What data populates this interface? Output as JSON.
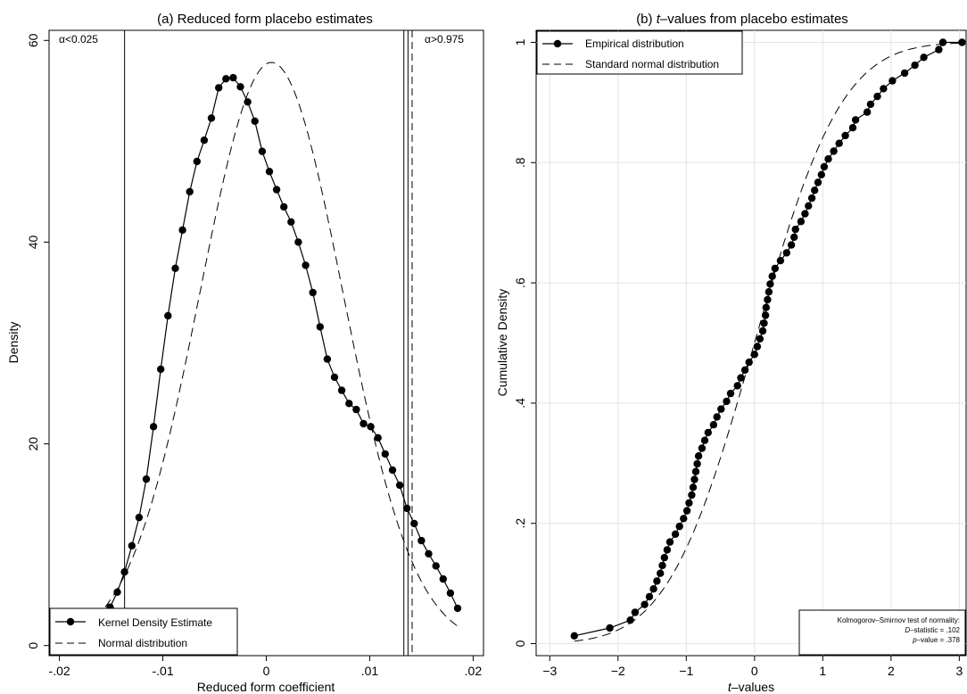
{
  "chart_data": [
    {
      "type": "line",
      "title": "(a) Reduced form placebo estimates",
      "xlabel": "Reduced form coefficient",
      "ylabel": "Density",
      "xlim": [
        -0.021,
        0.021
      ],
      "ylim": [
        -1,
        61
      ],
      "xticks": [
        -0.02,
        -0.01,
        0,
        0.01,
        0.02
      ],
      "xtick_labels": [
        "-.02",
        "-.01",
        "0",
        ".01",
        ".02"
      ],
      "yticks": [
        0,
        20,
        40,
        60
      ],
      "ytick_labels": [
        "0",
        "20",
        "40",
        "60"
      ],
      "grid": false,
      "legend_position": "bottom-left",
      "annotations": [
        {
          "text": "α<0.025",
          "at_x": -0.0185
        },
        {
          "text": "α>0.975",
          "at_x": 0.0185
        }
      ],
      "vlines": [
        {
          "x": -0.0137,
          "style": "solid"
        },
        {
          "x": 0.0133,
          "style": "solid"
        },
        {
          "x": 0.0137,
          "style": "solid"
        },
        {
          "x": 0.0141,
          "style": "dashed"
        }
      ],
      "series": [
        {
          "name": "Kernel Density Estimate",
          "style": "solid-markers",
          "x": [
            -0.0151,
            -0.0144,
            -0.0137,
            -0.013,
            -0.0123,
            -0.0116,
            -0.0109,
            -0.0102,
            -0.0095,
            -0.0088,
            -0.0081,
            -0.0074,
            -0.0067,
            -0.006,
            -0.0053,
            -0.0046,
            -0.0039,
            -0.0032,
            -0.0025,
            -0.0018,
            -0.0011,
            -0.0004,
            0.0003,
            0.001,
            0.0017,
            0.0024,
            0.0031,
            0.0038,
            0.0045,
            0.0052,
            0.0059,
            0.0066,
            0.0073,
            0.008,
            0.0087,
            0.0094,
            0.0101,
            0.0108,
            0.0115,
            0.0122,
            0.0129,
            0.0136,
            0.0143,
            0.015,
            0.0157,
            0.0164,
            0.0171,
            0.0178,
            0.0185
          ],
          "y": [
            3.8,
            5.3,
            7.3,
            9.9,
            12.7,
            16.5,
            21.7,
            27.4,
            32.7,
            37.4,
            41.2,
            45.0,
            48.0,
            50.1,
            52.3,
            55.3,
            56.2,
            56.3,
            55.4,
            53.9,
            52.0,
            49.0,
            47.0,
            45.2,
            43.5,
            42.0,
            40.0,
            37.7,
            35.0,
            31.6,
            28.4,
            26.6,
            25.3,
            24.0,
            23.4,
            22.0,
            21.7,
            20.6,
            19.0,
            17.4,
            15.9,
            13.6,
            12.1,
            10.4,
            9.1,
            7.9,
            6.6,
            5.2,
            3.7
          ]
        },
        {
          "name": "Normal distribution",
          "style": "dashed",
          "mean": 0.0005,
          "sd": 0.0069,
          "x_range": [
            -0.0165,
            0.0185
          ]
        }
      ]
    },
    {
      "type": "line",
      "title_prefix": "(b) ",
      "title_italic": "t",
      "title_rest": "–values from placebo estimates",
      "xlabel_italic": "t",
      "xlabel_rest": "–values",
      "ylabel": "Cumulative Density",
      "xlim": [
        -3.2,
        3.1
      ],
      "ylim": [
        -0.02,
        1.02
      ],
      "xticks": [
        -3,
        -2,
        -1,
        0,
        1,
        2,
        3
      ],
      "xtick_labels": [
        "−3",
        "−2",
        "−1",
        "0",
        "1",
        "2",
        "3"
      ],
      "yticks": [
        0,
        0.2,
        0.4,
        0.6,
        0.8,
        1
      ],
      "ytick_labels": [
        "0",
        ".2",
        ".4",
        ".6",
        ".8",
        "1"
      ],
      "grid": true,
      "legend_position": "top-left",
      "note": {
        "line1": "Kolmogorov–Smirnov test of normality:",
        "line2_italic": "D",
        "line2_rest": "–statistic = .102",
        "line3_italic": "p",
        "line3_rest": "–value = .378"
      },
      "series": [
        {
          "name": "Empirical distribution",
          "style": "solid-markers",
          "x": [
            -2.64,
            -2.12,
            -1.82,
            -1.75,
            -1.61,
            -1.54,
            -1.48,
            -1.43,
            -1.38,
            -1.35,
            -1.32,
            -1.28,
            -1.24,
            -1.16,
            -1.1,
            -1.04,
            -0.99,
            -0.96,
            -0.92,
            -0.9,
            -0.88,
            -0.86,
            -0.84,
            -0.82,
            -0.77,
            -0.73,
            -0.68,
            -0.6,
            -0.55,
            -0.49,
            -0.41,
            -0.35,
            -0.25,
            -0.2,
            -0.14,
            -0.08,
            0.0,
            0.04,
            0.08,
            0.12,
            0.14,
            0.16,
            0.17,
            0.19,
            0.21,
            0.23,
            0.26,
            0.3,
            0.38,
            0.47,
            0.54,
            0.58,
            0.6,
            0.68,
            0.74,
            0.79,
            0.84,
            0.88,
            0.93,
            0.98,
            1.02,
            1.08,
            1.16,
            1.24,
            1.33,
            1.44,
            1.48,
            1.65,
            1.7,
            1.8,
            1.89,
            2.02,
            2.2,
            2.35,
            2.48,
            2.7,
            2.76,
            3.04
          ],
          "y": [
            0.013,
            0.026,
            0.039,
            0.052,
            0.065,
            0.078,
            0.091,
            0.104,
            0.117,
            0.13,
            0.143,
            0.156,
            0.169,
            0.182,
            0.195,
            0.208,
            0.221,
            0.234,
            0.247,
            0.26,
            0.273,
            0.286,
            0.299,
            0.312,
            0.325,
            0.338,
            0.351,
            0.364,
            0.377,
            0.39,
            0.403,
            0.416,
            0.429,
            0.442,
            0.455,
            0.468,
            0.481,
            0.494,
            0.507,
            0.52,
            0.533,
            0.546,
            0.559,
            0.572,
            0.585,
            0.598,
            0.611,
            0.624,
            0.637,
            0.65,
            0.663,
            0.676,
            0.689,
            0.702,
            0.715,
            0.728,
            0.741,
            0.754,
            0.767,
            0.78,
            0.793,
            0.806,
            0.819,
            0.832,
            0.845,
            0.858,
            0.871,
            0.884,
            0.897,
            0.91,
            0.923,
            0.936,
            0.949,
            0.962,
            0.975,
            0.988,
            1.0,
            1.0
          ]
        },
        {
          "name": "Standard normal distribution",
          "style": "dashed",
          "mean": 0,
          "sd": 1,
          "x_range": [
            -2.64,
            3.04
          ]
        }
      ]
    }
  ]
}
